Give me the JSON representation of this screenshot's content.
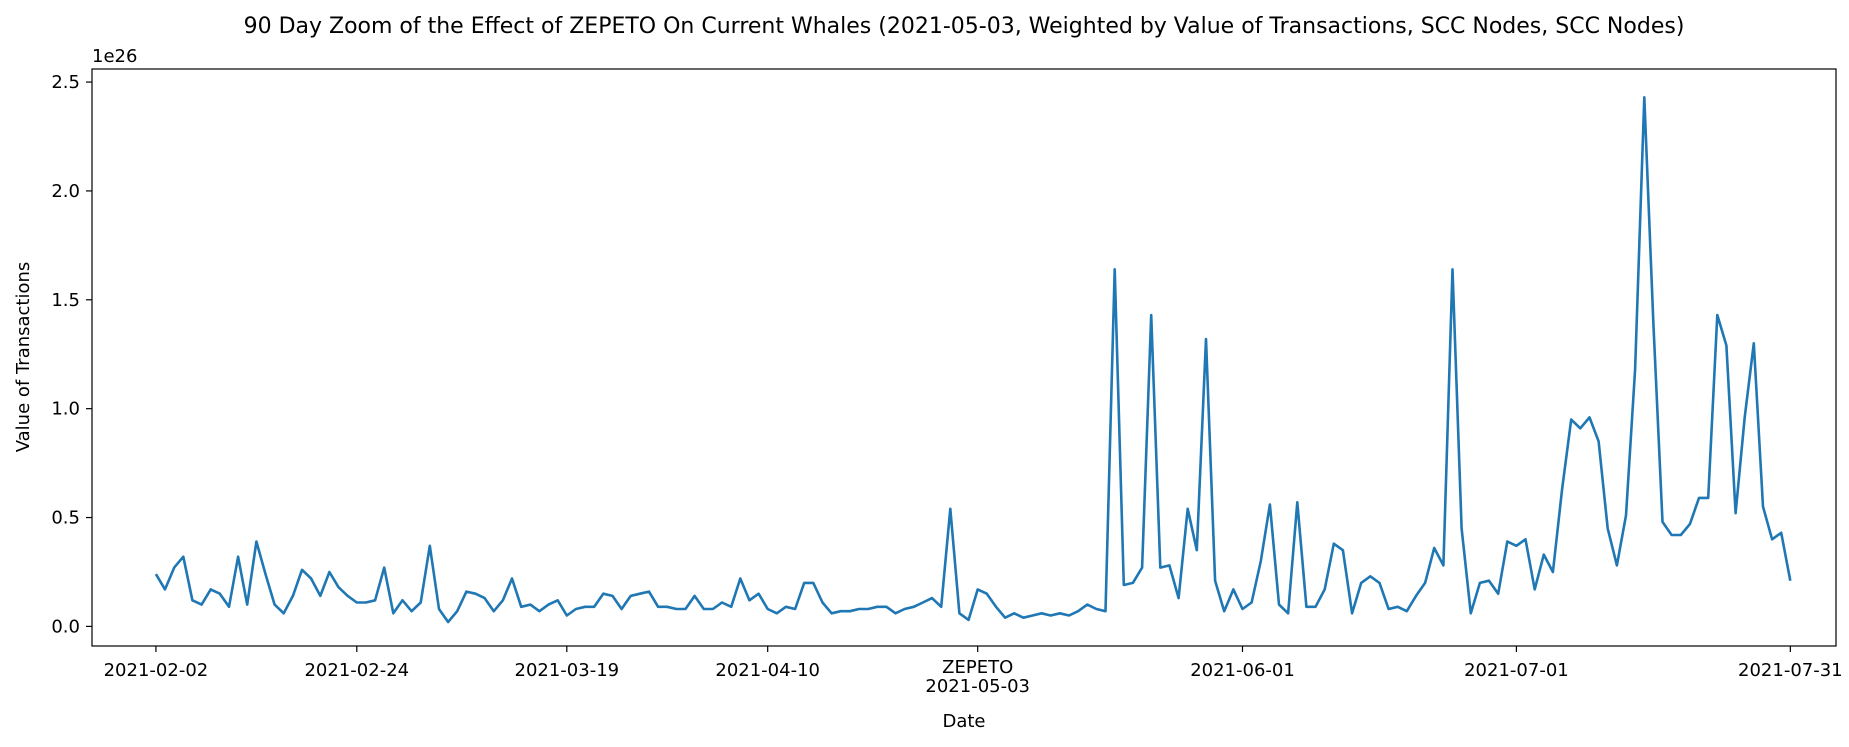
{
  "chart_data": {
    "type": "line",
    "title": "90 Day Zoom of the Effect of ZEPETO On Current Whales (2021-05-03, Weighted by Value of Transactions, SCC Nodes, SCC Nodes)",
    "xlabel": "Date",
    "ylabel": "Value of Transactions",
    "y_multiplier_label": "1e26",
    "x_range": [
      "2021-01-26",
      "2021-08-05"
    ],
    "ylim": [
      -0.09,
      2.56
    ],
    "grid": false,
    "legend": "none",
    "line_color": "#1f77b4",
    "x_ticks": [
      "2021-02-02",
      "2021-02-24",
      "2021-03-19",
      "2021-04-10",
      "2021-05-03",
      "2021-06-01",
      "2021-07-01",
      "2021-07-31"
    ],
    "event_label": "ZEPETO",
    "y_ticks": [
      "0.0",
      "0.5",
      "1.0",
      "1.5",
      "2.0",
      "2.5"
    ],
    "y_tick_values": [
      0.0,
      0.5,
      1.0,
      1.5,
      2.0,
      2.5
    ],
    "start_date": "2021-02-02",
    "series": [
      {
        "values": [
          0.24,
          0.17,
          0.27,
          0.32,
          0.12,
          0.1,
          0.17,
          0.15,
          0.09,
          0.32,
          0.1,
          0.39,
          0.24,
          0.1,
          0.06,
          0.14,
          0.26,
          0.22,
          0.14,
          0.25,
          0.18,
          0.14,
          0.11,
          0.11,
          0.12,
          0.27,
          0.06,
          0.12,
          0.07,
          0.11,
          0.37,
          0.08,
          0.02,
          0.07,
          0.16,
          0.15,
          0.13,
          0.07,
          0.12,
          0.22,
          0.09,
          0.1,
          0.07,
          0.1,
          0.12,
          0.05,
          0.08,
          0.09,
          0.09,
          0.15,
          0.14,
          0.08,
          0.14,
          0.15,
          0.16,
          0.09,
          0.09,
          0.08,
          0.08,
          0.14,
          0.08,
          0.08,
          0.11,
          0.09,
          0.22,
          0.12,
          0.15,
          0.08,
          0.06,
          0.09,
          0.08,
          0.2,
          0.2,
          0.11,
          0.06,
          0.07,
          0.07,
          0.08,
          0.08,
          0.09,
          0.09,
          0.06,
          0.08,
          0.09,
          0.11,
          0.13,
          0.09,
          0.54,
          0.06,
          0.03,
          0.17,
          0.15,
          0.09,
          0.04,
          0.06,
          0.04,
          0.05,
          0.06,
          0.05,
          0.06,
          0.05,
          0.07,
          0.1,
          0.08,
          0.07,
          1.64,
          0.19,
          0.2,
          0.27,
          1.43,
          0.27,
          0.28,
          0.13,
          0.54,
          0.35,
          1.32,
          0.21,
          0.07,
          0.17,
          0.08,
          0.11,
          0.3,
          0.56,
          0.1,
          0.06,
          0.57,
          0.09,
          0.09,
          0.17,
          0.38,
          0.35,
          0.06,
          0.2,
          0.23,
          0.2,
          0.08,
          0.09,
          0.07,
          0.14,
          0.2,
          0.36,
          0.28,
          1.64,
          0.45,
          0.06,
          0.2,
          0.21,
          0.15,
          0.39,
          0.37,
          0.4,
          0.17,
          0.33,
          0.25,
          0.63,
          0.95,
          0.91,
          0.96,
          0.85,
          0.45,
          0.28,
          0.51,
          1.18,
          2.43,
          1.39,
          0.48,
          0.42,
          0.42,
          0.47,
          0.59,
          0.59,
          1.43,
          1.29,
          0.52,
          0.96,
          1.3,
          0.55,
          0.4,
          0.43,
          0.21
        ]
      }
    ]
  }
}
